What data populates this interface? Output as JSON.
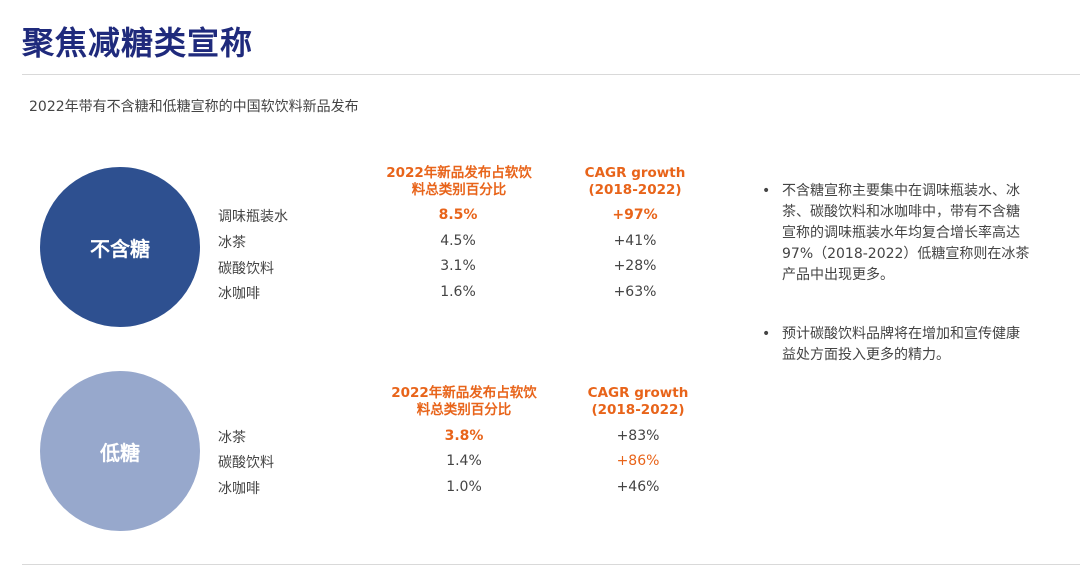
{
  "title": "聚焦减糖类宣称",
  "subtitle": "2022年带有不含糖和低糖宣称的中国软饮料新品发布",
  "groups": [
    {
      "label": "不含糖",
      "header_share_line1": "2022年新品发布占软饮",
      "header_share_line2": "料总类别百分比",
      "header_cagr_line1": "CAGR growth",
      "header_cagr_line2": "(2018-2022)",
      "rows": [
        {
          "name": "调味瓶装水",
          "share": "8.5%",
          "cagr": "+97%"
        },
        {
          "name": "冰茶",
          "share": "4.5%",
          "cagr": "+41%"
        },
        {
          "name": "碳酸饮料",
          "share": "3.1%",
          "cagr": "+28%"
        },
        {
          "name": "冰咖啡",
          "share": "1.6%",
          "cagr": "+63%"
        }
      ]
    },
    {
      "label": "低糖",
      "header_share_line1": "2022年新品发布占软饮",
      "header_share_line2": "料总类别百分比",
      "header_cagr_line1": "CAGR growth",
      "header_cagr_line2": "(2018-2022)",
      "rows": [
        {
          "name": "冰茶",
          "share": "3.8%",
          "cagr": "+83%"
        },
        {
          "name": "碳酸饮料",
          "share": "1.4%",
          "cagr": "+86%"
        },
        {
          "name": "冰咖啡",
          "share": "1.0%",
          "cagr": "+46%"
        }
      ]
    }
  ],
  "notes": [
    "不含糖宣称主要集中在调味瓶装水、冰茶、碳酸饮料和冰咖啡中，带有不含糖宣称的调味瓶装水年均复合增长率高达97%（2018-2022）低糖宣称则在冰茶产品中出现更多。",
    "预计碳酸饮料品牌将在增加和宣传健康益处方面投入更多的精力。"
  ],
  "bullet_char": "•",
  "colors": {
    "title": "#1f2a7c",
    "accent": "#e8641a",
    "circle1": "#2e5090",
    "circle2": "#97a8cc"
  }
}
